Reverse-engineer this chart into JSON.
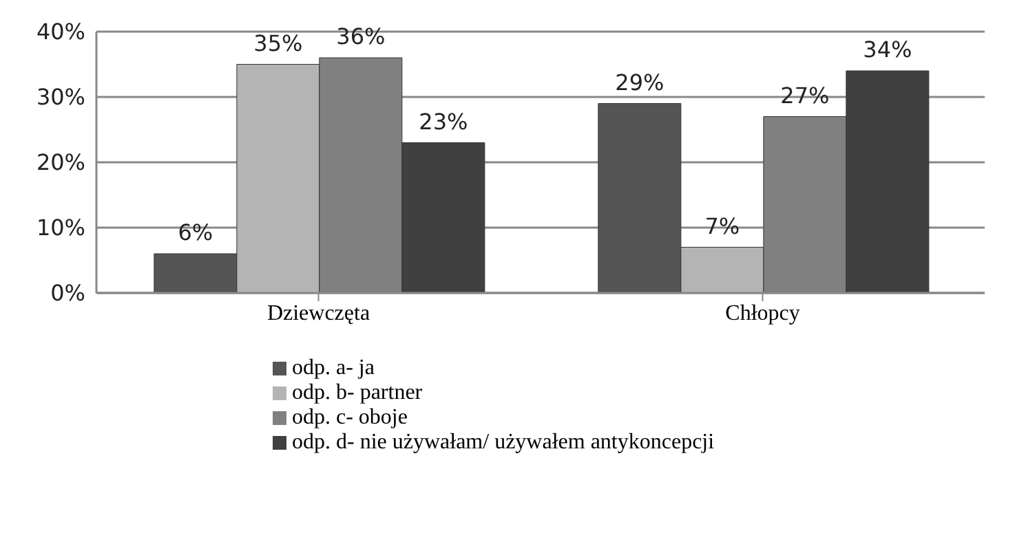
{
  "chart_data": {
    "type": "bar",
    "categories": [
      "Dziewczęta",
      "Chłopcy"
    ],
    "series": [
      {
        "name": "odp. a- ja",
        "color": "#555555",
        "values": [
          6,
          29
        ],
        "value_labels": [
          "6%",
          "29%"
        ]
      },
      {
        "name": "odp. b- partner",
        "color": "#b4b4b4",
        "values": [
          35,
          7
        ],
        "value_labels": [
          "35%",
          "7%"
        ]
      },
      {
        "name": "odp. c- oboje",
        "color": "#808080",
        "values": [
          36,
          27
        ],
        "value_labels": [
          "36%",
          "27%"
        ]
      },
      {
        "name": "odp. d- nie używałam/ używałem antykoncepcji",
        "color": "#404040",
        "values": [
          23,
          34
        ],
        "value_labels": [
          "23%",
          "34%"
        ]
      }
    ],
    "ylim": [
      0,
      40
    ],
    "yticks": [
      {
        "value": 0,
        "label": "0%"
      },
      {
        "value": 10,
        "label": "10%"
      },
      {
        "value": 20,
        "label": "20%"
      },
      {
        "value": 30,
        "label": "30%"
      },
      {
        "value": 40,
        "label": "40%"
      }
    ],
    "grid": "y",
    "legend": "bottom"
  }
}
